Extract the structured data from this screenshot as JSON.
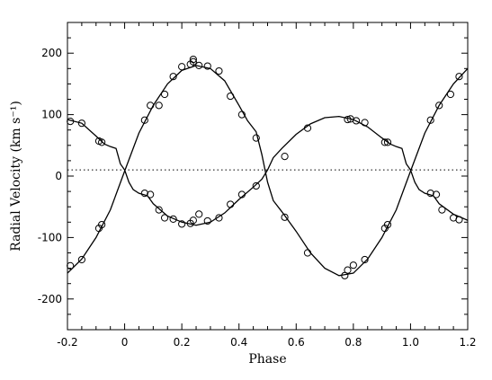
{
  "chart_data": {
    "type": "scatter",
    "xlabel": "Phase",
    "ylabel": "Radial Velocity (km s⁻¹)",
    "xlim": [
      -0.2,
      1.2
    ],
    "ylim": [
      -250,
      250
    ],
    "xticks": [
      "-0.2",
      "0",
      "0.2",
      "0.4",
      "0.6",
      "0.8",
      "1.0",
      "1.2"
    ],
    "xtick_values": [
      -0.2,
      0,
      0.2,
      0.4,
      0.6,
      0.8,
      1.0,
      1.2
    ],
    "yticks": [
      "-200",
      "-100",
      "0",
      "100",
      "200"
    ],
    "ytick_values": [
      -200,
      -100,
      0,
      100,
      200
    ],
    "systemic_velocity": 10,
    "line_style": "dotted",
    "grid": false,
    "series": [
      {
        "marker": "open-circle",
        "points": [
          [
            -0.19,
            -146
          ],
          [
            -0.15,
            -136
          ],
          [
            -0.09,
            -85
          ],
          [
            -0.08,
            -79
          ],
          [
            0.07,
            91
          ],
          [
            0.09,
            115
          ],
          [
            0.12,
            115
          ],
          [
            0.14,
            133
          ],
          [
            0.17,
            162
          ],
          [
            0.2,
            178
          ],
          [
            0.23,
            182
          ],
          [
            0.24,
            186
          ],
          [
            0.24,
            190
          ],
          [
            0.26,
            180
          ],
          [
            0.29,
            179
          ],
          [
            0.33,
            171
          ],
          [
            0.37,
            130
          ],
          [
            0.41,
            100
          ],
          [
            0.46,
            62
          ],
          [
            0.56,
            -67
          ],
          [
            0.64,
            -125
          ],
          [
            0.77,
            -162
          ],
          [
            0.78,
            -153
          ],
          [
            0.8,
            -145
          ],
          [
            0.84,
            -136
          ],
          [
            0.91,
            -85
          ],
          [
            0.92,
            -79
          ],
          [
            1.07,
            91
          ],
          [
            1.1,
            115
          ],
          [
            1.14,
            133
          ],
          [
            1.17,
            162
          ]
        ]
      },
      {
        "marker": "open-circle",
        "points": [
          [
            -0.19,
            89
          ],
          [
            -0.15,
            86
          ],
          [
            -0.09,
            57
          ],
          [
            -0.08,
            55
          ],
          [
            0.07,
            -28
          ],
          [
            0.09,
            -30
          ],
          [
            0.12,
            -55
          ],
          [
            0.14,
            -68
          ],
          [
            0.17,
            -70
          ],
          [
            0.2,
            -78
          ],
          [
            0.23,
            -77
          ],
          [
            0.24,
            -72
          ],
          [
            0.26,
            -62
          ],
          [
            0.29,
            -73
          ],
          [
            0.33,
            -68
          ],
          [
            0.37,
            -46
          ],
          [
            0.41,
            -30
          ],
          [
            0.46,
            -16
          ],
          [
            0.56,
            32
          ],
          [
            0.64,
            78
          ],
          [
            0.78,
            92
          ],
          [
            0.79,
            93
          ],
          [
            0.81,
            90
          ],
          [
            0.84,
            87
          ],
          [
            0.91,
            55
          ],
          [
            0.92,
            55
          ],
          [
            1.07,
            -28
          ],
          [
            1.09,
            -30
          ],
          [
            1.11,
            -55
          ],
          [
            1.15,
            -68
          ],
          [
            1.17,
            -71
          ]
        ]
      }
    ],
    "model_curves": [
      {
        "style": "solid",
        "points": [
          [
            -0.2,
            -158
          ],
          [
            -0.15,
            -135
          ],
          [
            -0.1,
            -100
          ],
          [
            -0.05,
            -55
          ],
          [
            0.0,
            8
          ],
          [
            0.05,
            70
          ],
          [
            0.1,
            115
          ],
          [
            0.15,
            150
          ],
          [
            0.2,
            172
          ],
          [
            0.25,
            180
          ],
          [
            0.3,
            175
          ],
          [
            0.35,
            155
          ],
          [
            0.4,
            115
          ],
          [
            0.43,
            90
          ],
          [
            0.46,
            72
          ],
          [
            0.48,
            35
          ],
          [
            0.5,
            -10
          ],
          [
            0.52,
            -40
          ],
          [
            0.55,
            -58
          ],
          [
            0.6,
            -90
          ],
          [
            0.65,
            -125
          ],
          [
            0.7,
            -150
          ],
          [
            0.75,
            -162
          ],
          [
            0.8,
            -158
          ],
          [
            0.85,
            -135
          ],
          [
            0.9,
            -100
          ],
          [
            0.95,
            -55
          ],
          [
            1.0,
            8
          ],
          [
            1.05,
            70
          ],
          [
            1.1,
            115
          ],
          [
            1.15,
            150
          ],
          [
            1.2,
            175
          ]
        ]
      },
      {
        "style": "solid",
        "points": [
          [
            -0.2,
            92
          ],
          [
            -0.15,
            86
          ],
          [
            -0.1,
            65
          ],
          [
            -0.07,
            52
          ],
          [
            -0.05,
            48
          ],
          [
            -0.03,
            45
          ],
          [
            -0.015,
            20
          ],
          [
            0.0,
            10
          ],
          [
            0.015,
            -10
          ],
          [
            0.03,
            -22
          ],
          [
            0.05,
            -28
          ],
          [
            0.08,
            -32
          ],
          [
            0.1,
            -45
          ],
          [
            0.15,
            -65
          ],
          [
            0.2,
            -75
          ],
          [
            0.25,
            -80
          ],
          [
            0.3,
            -75
          ],
          [
            0.35,
            -60
          ],
          [
            0.4,
            -38
          ],
          [
            0.45,
            -18
          ],
          [
            0.48,
            -5
          ],
          [
            0.5,
            10
          ],
          [
            0.52,
            30
          ],
          [
            0.55,
            45
          ],
          [
            0.6,
            68
          ],
          [
            0.65,
            85
          ],
          [
            0.7,
            95
          ],
          [
            0.75,
            97
          ],
          [
            0.8,
            92
          ],
          [
            0.85,
            80
          ],
          [
            0.9,
            62
          ],
          [
            0.93,
            52
          ],
          [
            0.95,
            48
          ],
          [
            0.97,
            45
          ],
          [
            0.985,
            20
          ],
          [
            1.0,
            10
          ],
          [
            1.015,
            -10
          ],
          [
            1.03,
            -22
          ],
          [
            1.05,
            -28
          ],
          [
            1.08,
            -32
          ],
          [
            1.1,
            -45
          ],
          [
            1.15,
            -62
          ],
          [
            1.2,
            -72
          ]
        ]
      }
    ]
  }
}
